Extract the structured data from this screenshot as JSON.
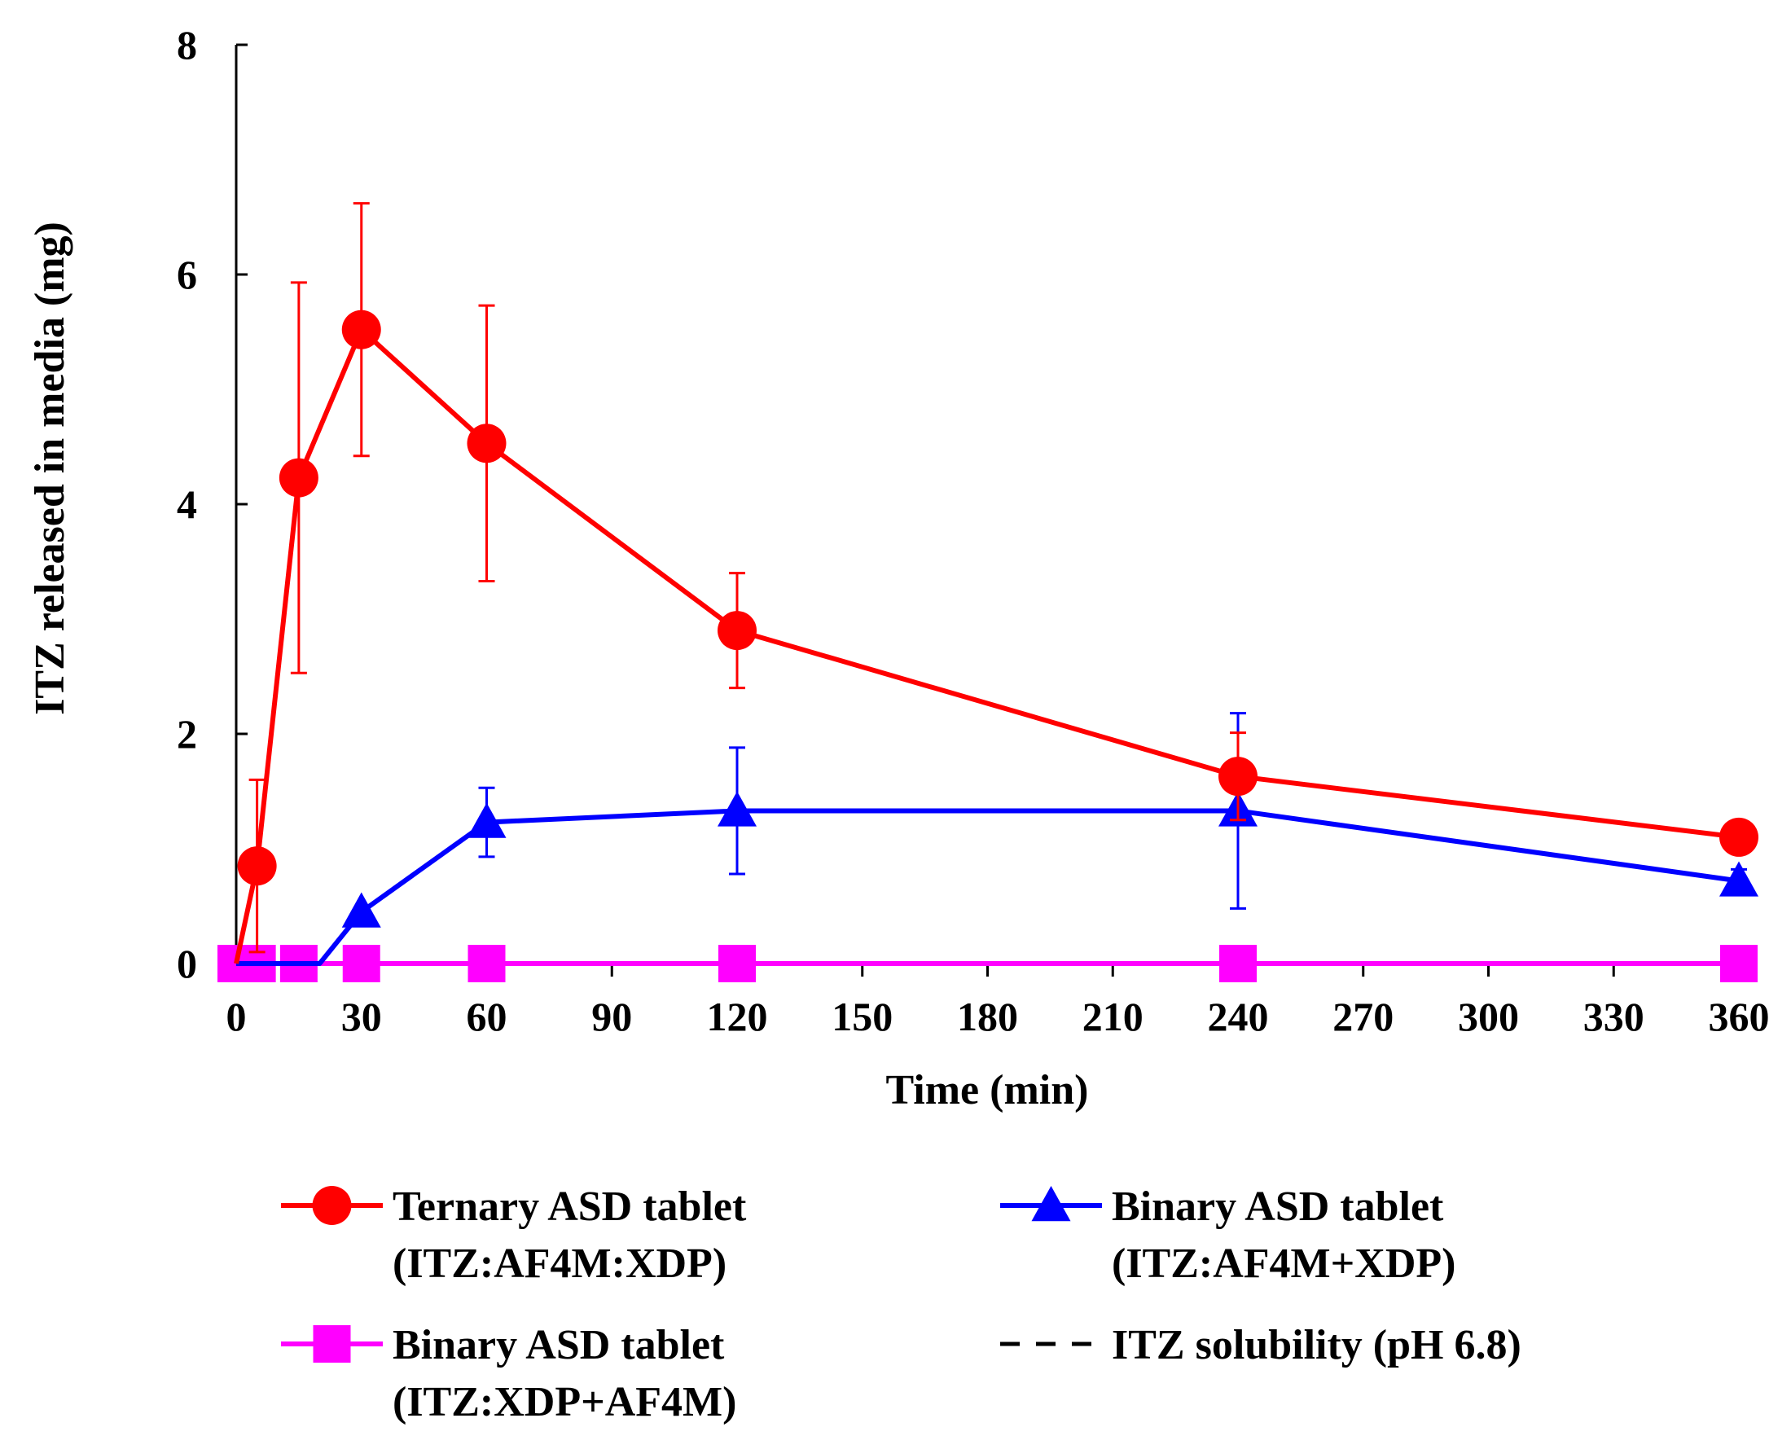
{
  "chart_data": {
    "type": "line",
    "title": "",
    "xlabel": "Time (min)",
    "ylabel": "ITZ released in media (mg)",
    "xlim": [
      0,
      360
    ],
    "ylim": [
      0,
      8
    ],
    "xticks": [
      "0",
      "30",
      "60",
      "90",
      "120",
      "150",
      "180",
      "210",
      "240",
      "270",
      "300",
      "330",
      "360"
    ],
    "yticks": [
      "0",
      "2",
      "4",
      "6",
      "8"
    ],
    "legend_position": "bottom",
    "series": [
      {
        "name": "Ternary ASD tablet",
        "name_line2": "(ITZ:AF4M:XDP)",
        "color": "#ff0000",
        "marker": "circle",
        "line": "solid",
        "x": [
          0,
          5,
          15,
          30,
          60,
          120,
          240,
          360
        ],
        "y": [
          0,
          0.85,
          4.23,
          5.52,
          4.53,
          2.9,
          1.63,
          1.1
        ],
        "err": [
          0,
          0.75,
          1.7,
          1.1,
          1.2,
          0.5,
          0.38,
          0.0
        ]
      },
      {
        "name": "Binary ASD tablet",
        "name_line2": "(ITZ:AF4M+XDP)",
        "color": "#0000ff",
        "marker": "triangle",
        "line": "solid",
        "x": [
          0,
          5,
          15,
          20,
          30,
          60,
          120,
          240,
          360
        ],
        "y": [
          0,
          0,
          0,
          0,
          0.45,
          1.23,
          1.33,
          1.33,
          0.72
        ],
        "err": [
          0,
          0,
          0,
          0,
          0,
          0.3,
          0.55,
          0.85,
          0.1
        ],
        "marker_at": [
          30,
          60,
          120,
          240,
          360
        ]
      },
      {
        "name": "Binary ASD tablet",
        "name_line2": "(ITZ:XDP+AF4M)",
        "color": "#ff00ff",
        "marker": "square",
        "line": "solid",
        "x": [
          0,
          5,
          15,
          30,
          60,
          120,
          240,
          360
        ],
        "y": [
          0,
          0,
          0,
          0,
          0,
          0,
          0,
          0
        ],
        "err": [
          0,
          0,
          0,
          0,
          0,
          0,
          0,
          0
        ]
      },
      {
        "name": "ITZ solubility (pH 6.8)",
        "name_line2": "",
        "color": "#000000",
        "marker": "none",
        "line": "dashed",
        "x": [
          0,
          360
        ],
        "y": [
          0,
          0
        ],
        "err": [
          0,
          0
        ]
      }
    ]
  }
}
